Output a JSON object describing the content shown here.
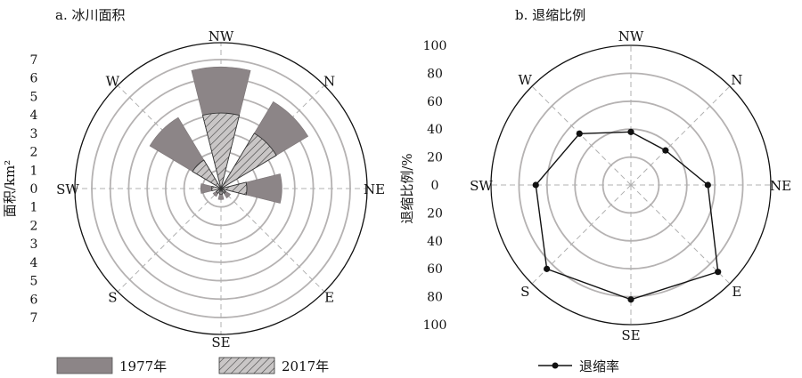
{
  "chart_data": [
    {
      "type": "polar-bar",
      "title": "a. 冰川面积",
      "ylabel": "面积/km²",
      "yticks": [
        0,
        1,
        2,
        3,
        4,
        5,
        6,
        7
      ],
      "rlim": [
        0,
        7
      ],
      "grid": true,
      "directions": [
        "NW",
        "N",
        "NE",
        "E",
        "SE",
        "S",
        "SW",
        "W"
      ],
      "series": [
        {
          "name": "1977年",
          "color": "#8c8587",
          "pattern": "solid",
          "values": [
            6.6,
            5.5,
            3.3,
            0.6,
            0.6,
            0.5,
            1.1,
            4.5
          ]
        },
        {
          "name": "2017年",
          "color": "#c9c6c6",
          "pattern": "hatch",
          "values": [
            4.1,
            3.5,
            1.4,
            0.3,
            0.3,
            0.3,
            0.5,
            1.8
          ]
        }
      ]
    },
    {
      "type": "radar",
      "title": "b. 退缩比例",
      "ylabel": "退缩比例/%",
      "yticks": [
        0,
        20,
        40,
        60,
        80,
        100
      ],
      "rlim": [
        0,
        100
      ],
      "grid": true,
      "directions": [
        "NW",
        "N",
        "NE",
        "E",
        "SE",
        "S",
        "SW",
        "W"
      ],
      "series": [
        {
          "name": "退缩率",
          "color": "#111111",
          "values": [
            38,
            35,
            55,
            88,
            82,
            85,
            68,
            52
          ]
        }
      ]
    }
  ],
  "legend": {
    "items": [
      {
        "label": "1977年",
        "swatch": "solid"
      },
      {
        "label": "2017年",
        "swatch": "hatch"
      },
      {
        "label": "退缩率",
        "swatch": "line-marker"
      }
    ]
  }
}
